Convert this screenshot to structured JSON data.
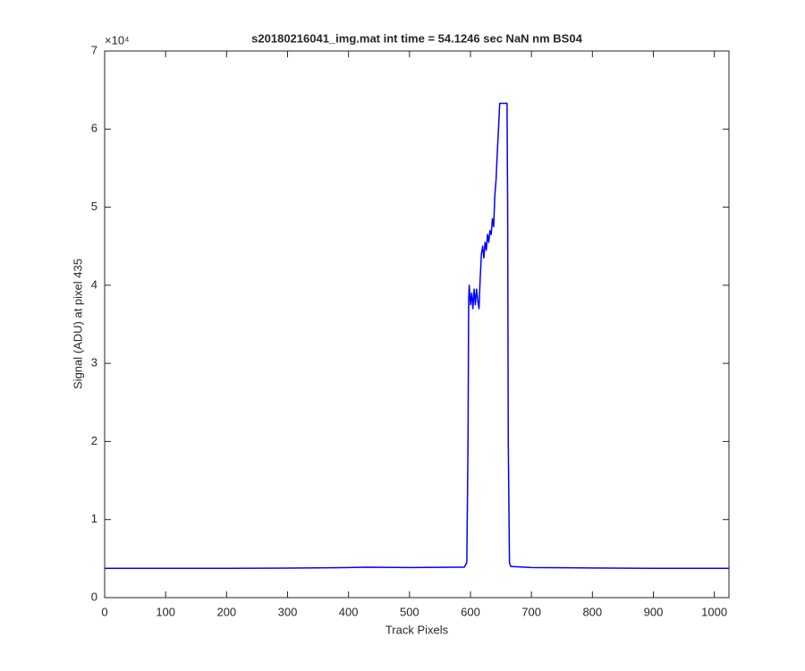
{
  "chart_data": {
    "type": "line",
    "title": "s20180216041_img.mat int time = 54.1246 sec  NaN nm BS04",
    "x_label": "Track Pixels",
    "y_label": "Signal (ADU) at pixel 435",
    "y_exponent_label": "×10⁴",
    "color": "#0000ff",
    "x": [
      0,
      100,
      200,
      300,
      400,
      430,
      500,
      590,
      594,
      596,
      597,
      598,
      600,
      602,
      604,
      606,
      608,
      610,
      612,
      614,
      616,
      618,
      620,
      622,
      624,
      626,
      628,
      630,
      632,
      634,
      636,
      638,
      640,
      642,
      644,
      646,
      648,
      660,
      661,
      662,
      664,
      666,
      700,
      800,
      900,
      1024
    ],
    "values": [
      3750,
      3750,
      3750,
      3780,
      3850,
      3900,
      3850,
      3900,
      4500,
      20000,
      38000,
      40000,
      37500,
      39000,
      37000,
      39500,
      37500,
      39500,
      38000,
      37000,
      41000,
      44000,
      45000,
      43500,
      45500,
      44500,
      46500,
      45500,
      47000,
      46500,
      48500,
      47500,
      51500,
      53500,
      57000,
      60000,
      63300,
      63300,
      50000,
      20000,
      4500,
      4000,
      3850,
      3800,
      3750,
      3750
    ],
    "xlim": [
      0,
      1024
    ],
    "xticks": [
      0,
      100,
      200,
      300,
      400,
      500,
      600,
      700,
      800,
      900,
      1000
    ],
    "ylim": [
      0,
      70000
    ],
    "yticks": [
      {
        "value": 0,
        "label": "0"
      },
      {
        "value": 10000,
        "label": "1"
      },
      {
        "value": 20000,
        "label": "2"
      },
      {
        "value": 30000,
        "label": "3"
      },
      {
        "value": 40000,
        "label": "4"
      },
      {
        "value": 50000,
        "label": "5"
      },
      {
        "value": 60000,
        "label": "6"
      },
      {
        "value": 70000,
        "label": "7"
      }
    ],
    "grid": false
  }
}
